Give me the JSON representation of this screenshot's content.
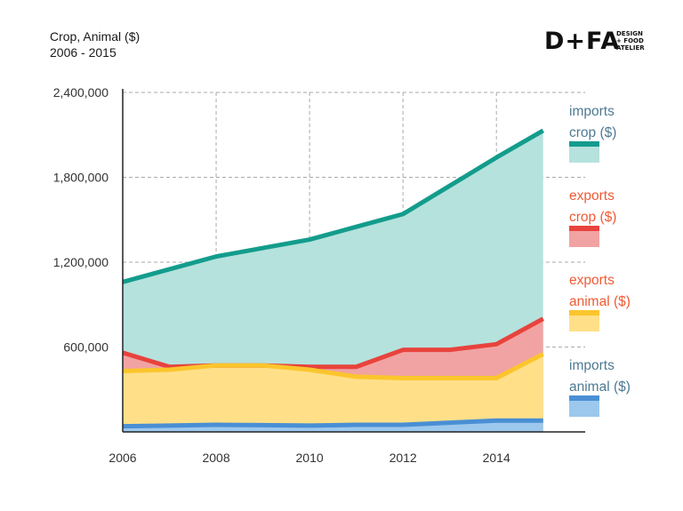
{
  "title": {
    "line1": "Crop, Animal ($)",
    "line2": "2006 - 2015"
  },
  "logo": {
    "text": "D+FA",
    "sub": [
      "DESIGN",
      "+ FOOD",
      "ATELIER"
    ]
  },
  "chart_data": {
    "type": "area",
    "stacked": false,
    "x": [
      2006,
      2007,
      2008,
      2009,
      2010,
      2011,
      2012,
      2013,
      2014,
      2015
    ],
    "ylim": [
      0,
      2400000
    ],
    "xlim": [
      2006,
      2015.9
    ],
    "yticks": [
      600000,
      1200000,
      1800000,
      2400000
    ],
    "ytick_labels": [
      "600,000",
      "1,200,000",
      "1,800,000",
      "2,400,000"
    ],
    "xticks": [
      2006,
      2008,
      2010,
      2012,
      2014
    ],
    "xtick_labels": [
      "2006",
      "2008",
      "2010",
      "2012",
      "2014"
    ],
    "grid": true,
    "legend_position": "right",
    "series": [
      {
        "name": "imports crop ($)",
        "label_lines": [
          "imports",
          "crop ($)"
        ],
        "values": [
          1060000,
          1150000,
          1240000,
          1300000,
          1360000,
          1450000,
          1540000,
          1740000,
          1940000,
          2130000
        ],
        "line_color": "#139C8C",
        "fill_color": "#B5E2DD",
        "label_color": "#4F7A93"
      },
      {
        "name": "exports crop ($)",
        "label_lines": [
          "exports",
          "crop ($)"
        ],
        "values": [
          560000,
          460000,
          470000,
          470000,
          460000,
          460000,
          580000,
          580000,
          620000,
          800000
        ],
        "line_color": "#E8433D",
        "fill_color": "#F1A3A3",
        "label_color": "#EF5B36"
      },
      {
        "name": "exports animal ($)",
        "label_lines": [
          "exports",
          "animal ($)"
        ],
        "values": [
          430000,
          440000,
          470000,
          470000,
          440000,
          390000,
          380000,
          380000,
          380000,
          550000
        ],
        "line_color": "#FBC52C",
        "fill_color": "#FFE089",
        "label_color": "#EF5B36"
      },
      {
        "name": "imports animal ($)",
        "label_lines": [
          "imports",
          "animal ($)"
        ],
        "values": [
          40000,
          45000,
          50000,
          48000,
          45000,
          50000,
          50000,
          65000,
          80000,
          80000
        ],
        "line_color": "#4A8FD4",
        "fill_color": "#9CC8EE",
        "label_color": "#4F7A93"
      }
    ]
  }
}
